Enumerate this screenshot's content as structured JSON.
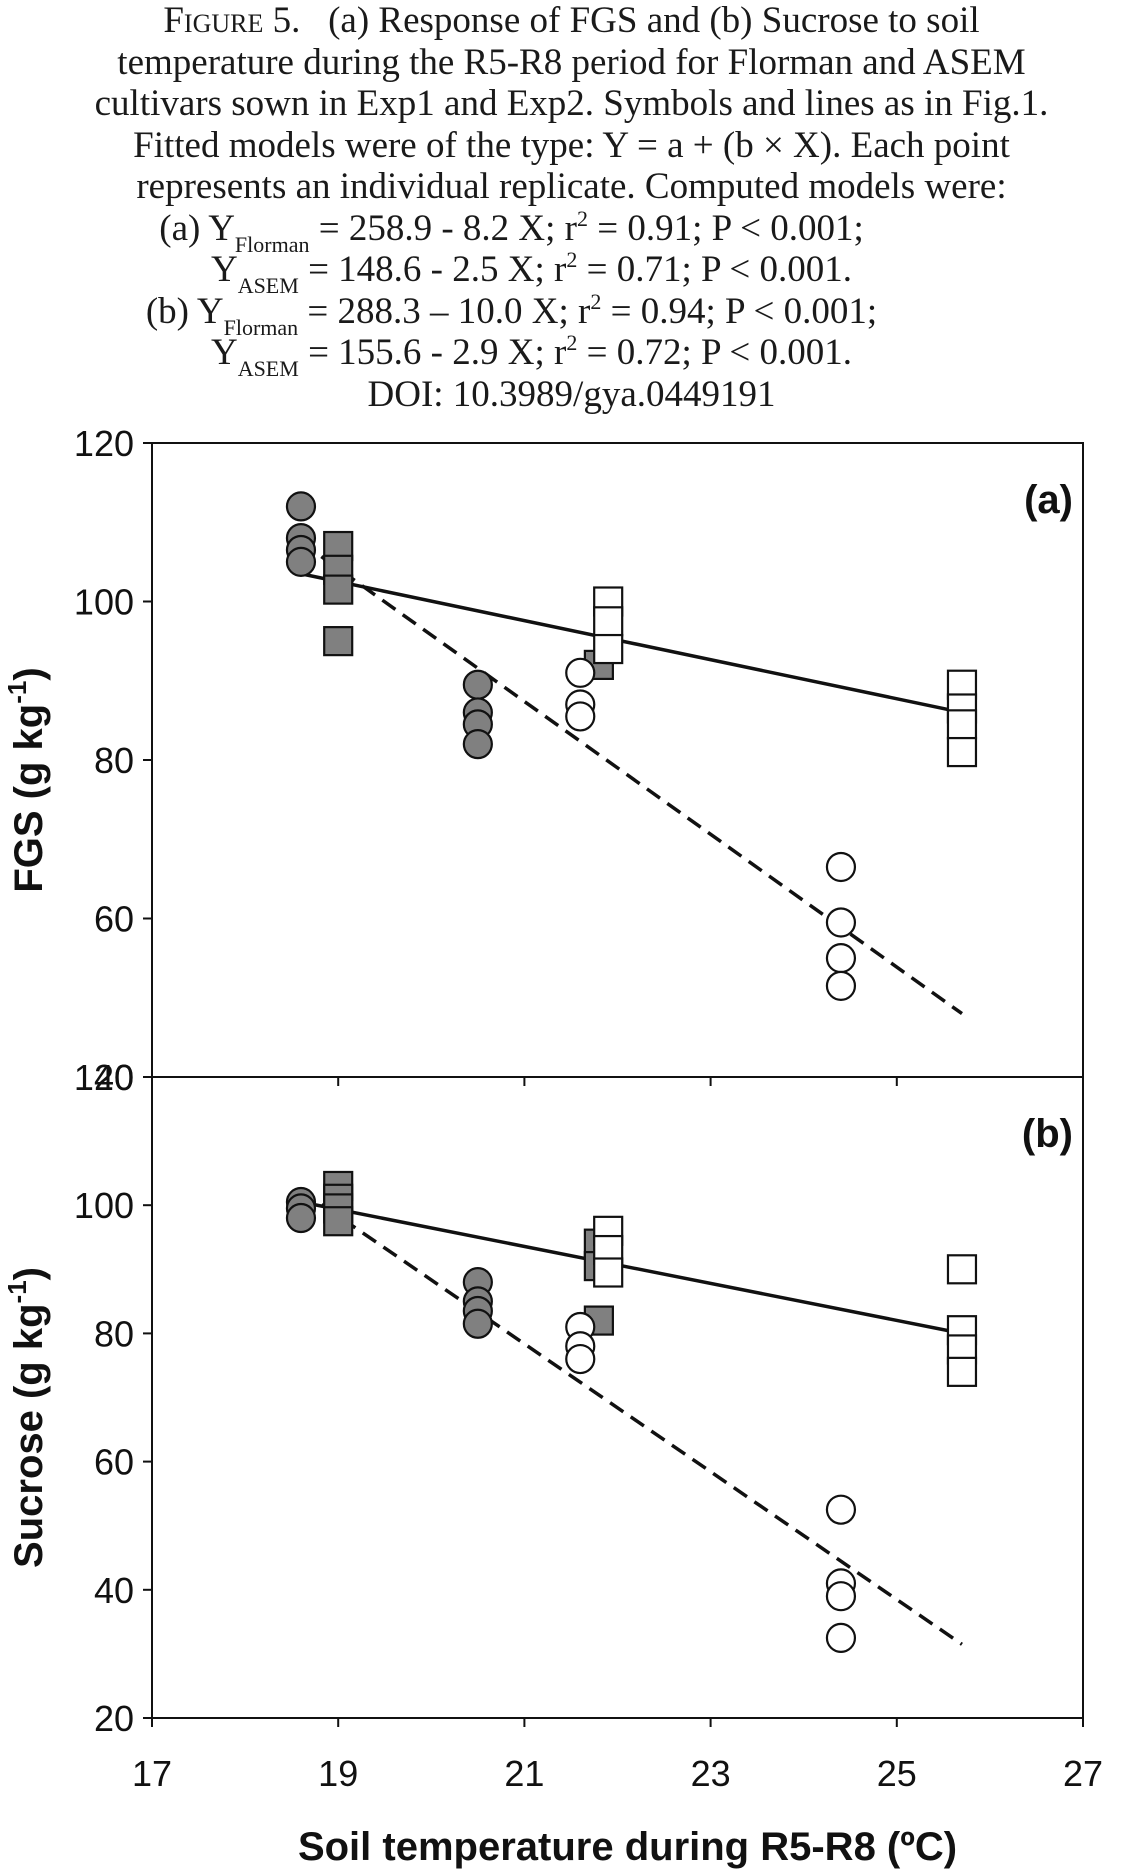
{
  "caption": {
    "fig_label": "Figure 5.",
    "line1_rest": "(a) Response of FGS and (b) Sucrose to soil",
    "line2": "temperature during the R5-R8 period for Florman and ASEM",
    "line3": "cultivars sown in Exp1 and Exp2. Symbols and lines as in Fig.1.",
    "line4": "Fitted models were of the type: Y = a + (b × X). Each point",
    "line5": "represents an individual replicate. Computed models were:",
    "model_a_florman": {
      "prefix": "(a) Y",
      "sub": "Florman",
      "pre": " = 258.9 - 8.2 X; r",
      "sup": "2",
      "post": " = 0.91; P < 0.001;"
    },
    "model_a_asem": {
      "prefix": "Y",
      "sub": "ASEM",
      "pre": " = 148.6 - 2.5 X; r",
      "sup": "2",
      "post": " = 0.71; P < 0.001."
    },
    "model_b_florman": {
      "prefix": "(b) Y",
      "sub": "Florman",
      "pre": " = 288.3 – 10.0 X; r",
      "sup": "2",
      "post": " = 0.94; P < 0.001;"
    },
    "model_b_asem": {
      "prefix": "Y",
      "sub": "ASEM",
      "pre": " = 155.6 - 2.9 X; r",
      "sup": "2",
      "post": " = 0.72; P < 0.001."
    },
    "doi": "DOI: 10.3989/gya.0449191"
  },
  "chart_data": [
    {
      "type": "scatter",
      "panel_label": "(a)",
      "ylabel_main": "FGS (g kg",
      "ylabel_sup": "-1",
      "ylabel_end": ")",
      "xlim": [
        17,
        27
      ],
      "ylim": [
        40,
        120
      ],
      "yticks": [
        "40",
        "60",
        "80",
        "100",
        "120"
      ],
      "series": [
        {
          "marker": "circle-filled",
          "color": "#808080",
          "points": [
            [
              18.6,
              112
            ],
            [
              18.6,
              108
            ],
            [
              18.6,
              106.5
            ],
            [
              18.6,
              105
            ],
            [
              20.5,
              89.5
            ],
            [
              20.5,
              86
            ],
            [
              20.5,
              84.5
            ],
            [
              20.5,
              82
            ]
          ]
        },
        {
          "marker": "square-filled",
          "color": "#808080",
          "points": [
            [
              19.0,
              107
            ],
            [
              19.0,
              104
            ],
            [
              19.0,
              101.5
            ],
            [
              19.0,
              95
            ],
            [
              21.8,
              92
            ]
          ]
        },
        {
          "marker": "circle-open",
          "color": "#ffffff",
          "points": [
            [
              21.6,
              91
            ],
            [
              21.6,
              87
            ],
            [
              21.6,
              85.5
            ],
            [
              24.4,
              66.5
            ],
            [
              24.4,
              59.5
            ],
            [
              24.4,
              55
            ],
            [
              24.4,
              51.5
            ]
          ]
        },
        {
          "marker": "square-open",
          "color": "#ffffff",
          "points": [
            [
              21.9,
              100
            ],
            [
              21.9,
              97.5
            ],
            [
              21.9,
              94
            ],
            [
              25.7,
              89.5
            ],
            [
              25.7,
              86.5
            ],
            [
              25.7,
              84.5
            ],
            [
              25.7,
              81
            ]
          ]
        }
      ],
      "lines": [
        {
          "style": "solid",
          "x": [
            18.6,
            25.7
          ],
          "y": [
            103.5,
            86.0
          ]
        },
        {
          "style": "dashed",
          "x": [
            18.6,
            25.7
          ],
          "y": [
            107.5,
            48.0
          ]
        }
      ]
    },
    {
      "type": "scatter",
      "panel_label": "(b)",
      "ylabel_main": "Sucrose (g kg",
      "ylabel_sup": "-1",
      "ylabel_end": ")",
      "xlim": [
        17,
        27
      ],
      "ylim": [
        20,
        120
      ],
      "yticks": [
        "20",
        "40",
        "60",
        "80",
        "100",
        "120"
      ],
      "xticks": [
        "17",
        "19",
        "21",
        "23",
        "25",
        "27"
      ],
      "xlabel": "Soil temperature during R5-R8 (ºC)",
      "series": [
        {
          "marker": "circle-filled",
          "color": "#808080",
          "points": [
            [
              18.6,
              100.5
            ],
            [
              18.6,
              99.5
            ],
            [
              18.6,
              98
            ],
            [
              20.5,
              88
            ],
            [
              20.5,
              85
            ],
            [
              20.5,
              83.5
            ],
            [
              20.5,
              81.5
            ]
          ]
        },
        {
          "marker": "square-filled",
          "color": "#808080",
          "points": [
            [
              19.0,
              103
            ],
            [
              19.0,
              101
            ],
            [
              19.0,
              99.5
            ],
            [
              19.0,
              97.5
            ],
            [
              21.8,
              94
            ],
            [
              21.8,
              90.5
            ],
            [
              21.8,
              82
            ]
          ]
        },
        {
          "marker": "circle-open",
          "color": "#ffffff",
          "points": [
            [
              21.6,
              81
            ],
            [
              21.6,
              78
            ],
            [
              21.6,
              76
            ],
            [
              24.4,
              52.5
            ],
            [
              24.4,
              41
            ],
            [
              24.4,
              39
            ],
            [
              24.4,
              32.5
            ]
          ]
        },
        {
          "marker": "square-open",
          "color": "#ffffff",
          "points": [
            [
              21.9,
              96
            ],
            [
              21.9,
              93
            ],
            [
              21.9,
              89.5
            ],
            [
              25.7,
              90
            ],
            [
              25.7,
              80.5
            ],
            [
              25.7,
              77.5
            ],
            [
              25.7,
              74
            ]
          ]
        }
      ],
      "lines": [
        {
          "style": "solid",
          "x": [
            18.6,
            25.7
          ],
          "y": [
            100.5,
            80.0
          ]
        },
        {
          "style": "dashed",
          "x": [
            18.6,
            25.7
          ],
          "y": [
            102.3,
            31.5
          ]
        }
      ]
    }
  ]
}
